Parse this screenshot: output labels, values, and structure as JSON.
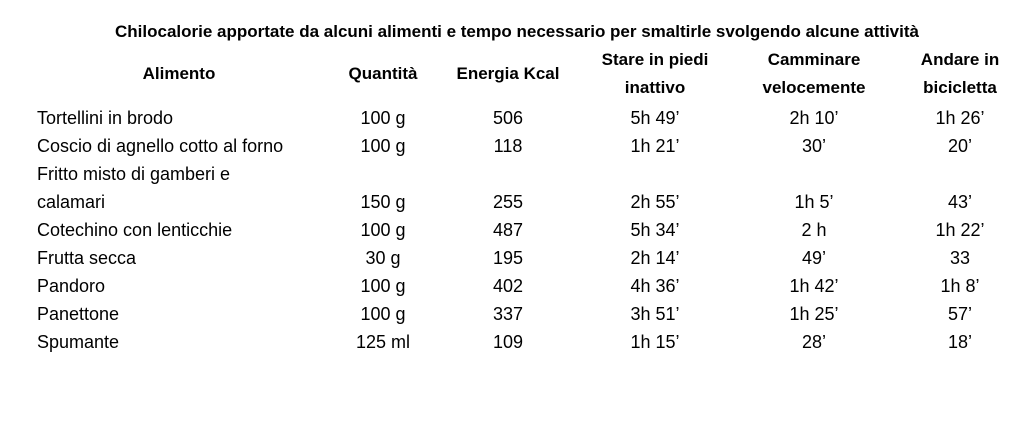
{
  "title": "Chilocalorie apportate da alcuni alimenti e tempo necessario per smaltirle svolgendo alcune attività",
  "table": {
    "headers": [
      "Alimento",
      "Quantità",
      "Energia Kcal",
      "Stare in piedi inattivo",
      "Camminare velocemente",
      "Andare in bicicletta"
    ],
    "rows": [
      [
        "Tortellini in brodo",
        "100 g",
        "506",
        "5h 49’",
        "2h 10’",
        "1h 26’"
      ],
      [
        "Coscio di agnello cotto al forno",
        "100 g",
        "118",
        "1h 21’",
        "30’",
        "20’"
      ],
      [
        "Fritto misto di gamberi e calamari",
        "150 g",
        "255",
        "2h 55’",
        "1h 5’",
        "43’"
      ],
      [
        "Cotechino con lenticchie",
        "100 g",
        "487",
        "5h 34’",
        "2 h",
        "1h 22’"
      ],
      [
        "Frutta secca",
        "30 g",
        "195",
        "2h 14’",
        "49’",
        "33"
      ],
      [
        "Pandoro",
        "100 g",
        "402",
        "4h 36’",
        "1h 42’",
        "1h 8’"
      ],
      [
        "Panettone",
        "100 g",
        "337",
        "3h 51’",
        "1h 25’",
        "57’"
      ],
      [
        "Spumante",
        "125 ml",
        "109",
        "1h 15’",
        "28’",
        "18’"
      ]
    ]
  }
}
